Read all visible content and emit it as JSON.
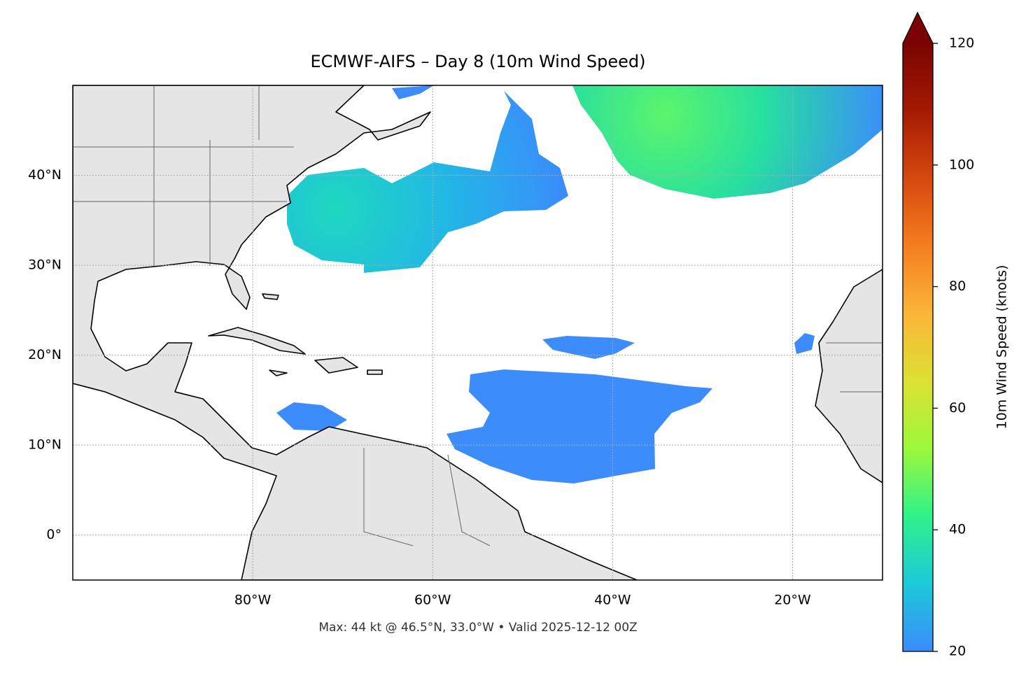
{
  "title": "ECMWF-AIFS – Day 8 (10m Wind Speed)",
  "footer": "Max: 44 kt @ 46.5°N, 33.0°W • Valid 2025-12-12 00Z",
  "map": {
    "xlim": [
      -100,
      -10
    ],
    "ylim": [
      -5,
      50
    ],
    "xticks": [
      {
        "value": -80,
        "label": "80°W"
      },
      {
        "value": -60,
        "label": "60°W"
      },
      {
        "value": -40,
        "label": "40°W"
      },
      {
        "value": -20,
        "label": "20°W"
      }
    ],
    "yticks": [
      {
        "value": 0,
        "label": "0°"
      },
      {
        "value": 10,
        "label": "10°N"
      },
      {
        "value": 20,
        "label": "20°N"
      },
      {
        "value": 30,
        "label": "30°N"
      },
      {
        "value": 40,
        "label": "40°N"
      }
    ],
    "grid": true
  },
  "colorbar": {
    "label": "10m Wind Speed (knots)",
    "lim": [
      20,
      120
    ],
    "ticks": [
      20,
      40,
      60,
      80,
      100,
      120
    ],
    "colors": [
      "#3b8cfb",
      "#1dc9d9",
      "#2ef28a",
      "#9cf83a",
      "#dde034",
      "#fbb538",
      "#f57e20",
      "#d6480f",
      "#a41a03",
      "#7a0403"
    ]
  }
}
